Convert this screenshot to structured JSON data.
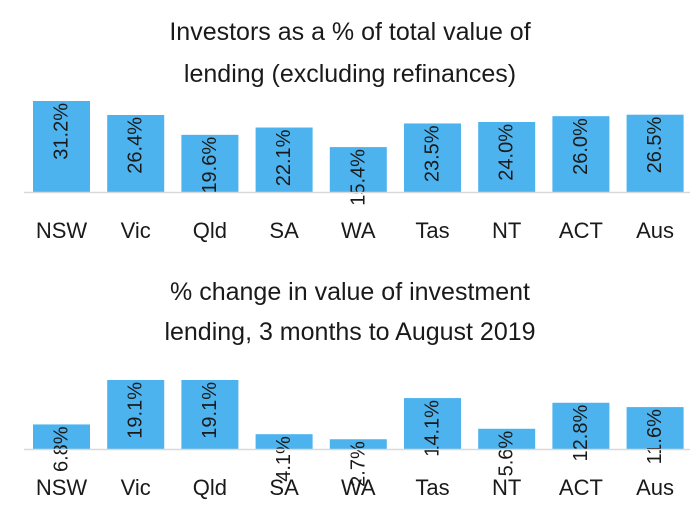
{
  "chart_data": [
    {
      "type": "bar",
      "title_line1": "Investors as a % of total value of",
      "title_line2": "lending (excluding refinances)",
      "categories": [
        "NSW",
        "Vic",
        "Qld",
        "SA",
        "WA",
        "Tas",
        "NT",
        "ACT",
        "Aus"
      ],
      "values": [
        31.2,
        26.4,
        19.6,
        22.1,
        15.4,
        23.5,
        24.0,
        26.0,
        26.5
      ],
      "labels": [
        "31.2%",
        "26.4%",
        "19.6%",
        "22.1%",
        "15.4%",
        "23.5%",
        "24.0%",
        "26.0%",
        "26.5%"
      ],
      "xlabel": "",
      "ylabel": "",
      "ylim": [
        0,
        31.2
      ],
      "grid": false
    },
    {
      "type": "bar",
      "title_line1": "% change in value of investment",
      "title_line2": "lending, 3 months to August 2019",
      "categories": [
        "NSW",
        "Vic",
        "Qld",
        "SA",
        "WA",
        "Tas",
        "NT",
        "ACT",
        "Aus"
      ],
      "values": [
        6.8,
        19.1,
        19.1,
        4.1,
        2.7,
        14.1,
        5.6,
        12.8,
        11.6
      ],
      "labels": [
        "6.8%",
        "19.1%",
        "19.1%",
        "4.1%",
        "2.7%",
        "14.1%",
        "5.6%",
        "12.8%",
        "11.6%"
      ],
      "xlabel": "",
      "ylabel": "",
      "ylim": [
        0,
        19.1
      ],
      "grid": false
    }
  ],
  "colors": {
    "bar": "#4db3ee",
    "axis": "#d9d9d9",
    "text": "#1a1a1a"
  }
}
